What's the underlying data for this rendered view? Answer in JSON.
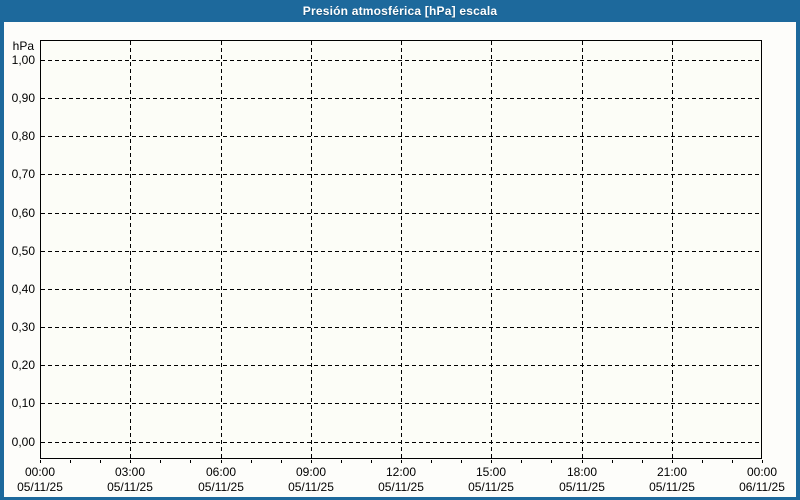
{
  "window": {
    "title": "Presión atmosférica [hPa] escala",
    "titlebar_color": "#1d699c",
    "border_color": "#1d699c",
    "plot_bg": "#fcfdf7"
  },
  "chart_data": {
    "type": "line",
    "title": "Presión atmosférica [hPa] escala",
    "xlabel": "",
    "ylabel": "hPa",
    "ylim": [
      -0.05,
      1.05
    ],
    "xlim_hours": [
      0,
      24
    ],
    "grid": "dashed",
    "legend_position": "none",
    "series": [],
    "y_ticks": [
      {
        "value": 1.0,
        "label": "1,00"
      },
      {
        "value": 0.9,
        "label": "0,90"
      },
      {
        "value": 0.8,
        "label": "0,80"
      },
      {
        "value": 0.7,
        "label": "0,70"
      },
      {
        "value": 0.6,
        "label": "0,60"
      },
      {
        "value": 0.5,
        "label": "0,50"
      },
      {
        "value": 0.4,
        "label": "0,40"
      },
      {
        "value": 0.3,
        "label": "0,30"
      },
      {
        "value": 0.2,
        "label": "0,20"
      },
      {
        "value": 0.1,
        "label": "0,10"
      },
      {
        "value": 0.0,
        "label": "0,00"
      }
    ],
    "x_ticks": [
      {
        "hour": 0,
        "time": "00:00",
        "date": "05/11/25"
      },
      {
        "hour": 3,
        "time": "03:00",
        "date": "05/11/25"
      },
      {
        "hour": 6,
        "time": "06:00",
        "date": "05/11/25"
      },
      {
        "hour": 9,
        "time": "09:00",
        "date": "05/11/25"
      },
      {
        "hour": 12,
        "time": "12:00",
        "date": "05/11/25"
      },
      {
        "hour": 15,
        "time": "15:00",
        "date": "05/11/25"
      },
      {
        "hour": 18,
        "time": "18:00",
        "date": "05/11/25"
      },
      {
        "hour": 21,
        "time": "21:00",
        "date": "05/11/25"
      },
      {
        "hour": 24,
        "time": "00:00",
        "date": "06/11/25"
      }
    ],
    "minor_x_tick_every_hours": 1
  }
}
